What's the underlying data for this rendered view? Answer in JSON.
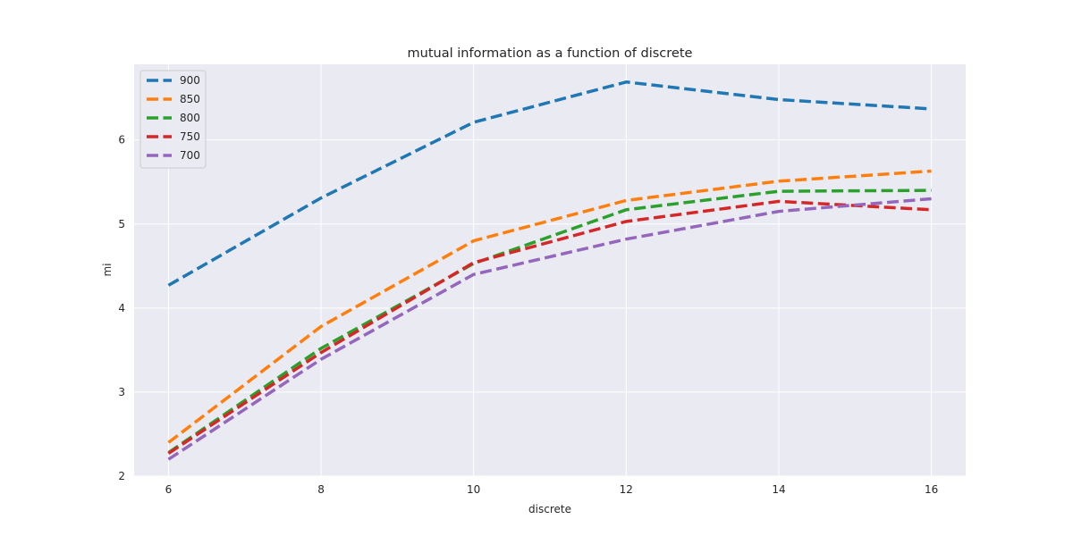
{
  "chart_data": {
    "type": "line",
    "title": "mutual information as a function of discrete",
    "xlabel": "discrete",
    "ylabel": "mi",
    "x": [
      6,
      8,
      10,
      12,
      14,
      16
    ],
    "xlim": [
      5.55,
      16.45
    ],
    "ylim": [
      2.0,
      6.9
    ],
    "xticks": [
      6,
      8,
      10,
      12,
      14,
      16
    ],
    "yticks": [
      2,
      3,
      4,
      5,
      6
    ],
    "grid": true,
    "line_style": "dashed",
    "background": "#eaeaf2",
    "legend_position": "top-left",
    "series": [
      {
        "name": "900",
        "color": "#1f77b4",
        "values": [
          4.27,
          5.31,
          6.21,
          6.69,
          6.48,
          6.37
        ]
      },
      {
        "name": "850",
        "color": "#ff7f0e",
        "values": [
          2.4,
          3.78,
          4.8,
          5.28,
          5.51,
          5.63
        ]
      },
      {
        "name": "800",
        "color": "#2ca02c",
        "values": [
          2.28,
          3.52,
          4.53,
          5.17,
          5.39,
          5.4
        ]
      },
      {
        "name": "750",
        "color": "#d62728",
        "values": [
          2.27,
          3.47,
          4.54,
          5.03,
          5.27,
          5.17
        ]
      },
      {
        "name": "700",
        "color": "#9467bd",
        "values": [
          2.2,
          3.39,
          4.4,
          4.82,
          5.15,
          5.3
        ]
      }
    ]
  }
}
